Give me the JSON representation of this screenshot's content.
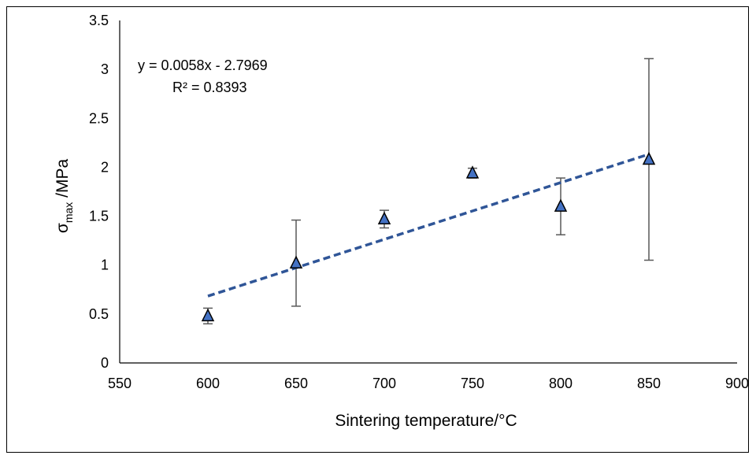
{
  "chart_data": {
    "type": "scatter",
    "title": "",
    "xlabel": "Sintering temperature/°C",
    "ylabel": {
      "symbol": "σ",
      "subscript": "max",
      "suffix": " /MPa"
    },
    "xlim": [
      550,
      900
    ],
    "ylim": [
      0,
      3.5
    ],
    "x_ticks": [
      550,
      600,
      650,
      700,
      750,
      800,
      850,
      900
    ],
    "y_ticks": [
      0,
      0.5,
      1,
      1.5,
      2,
      2.5,
      3,
      3.5
    ],
    "x_tick_labels": [
      "550",
      "600",
      "650",
      "700",
      "750",
      "800",
      "850",
      "900"
    ],
    "y_tick_labels": [
      "0",
      "0.5",
      "1",
      "1.5",
      "2",
      "2.5",
      "3",
      "3.5"
    ],
    "grid": false,
    "legend": "none",
    "marker": "triangle",
    "marker_color": "#4472C4",
    "series": [
      {
        "x": [
          600,
          650,
          700,
          750,
          800,
          850
        ],
        "y": [
          0.48,
          1.02,
          1.47,
          1.94,
          1.6,
          2.08
        ],
        "error": [
          0.08,
          0.44,
          0.09,
          0.05,
          0.29,
          1.03
        ]
      }
    ],
    "trendline": {
      "type": "linear",
      "slope": 0.0058,
      "intercept": -2.7969,
      "x_range": [
        600,
        850
      ],
      "color": "#2F5597",
      "style": "dashed",
      "equation_label": "y = 0.0058x - 2.7969",
      "r2_label": "R² = 0.8393"
    }
  }
}
